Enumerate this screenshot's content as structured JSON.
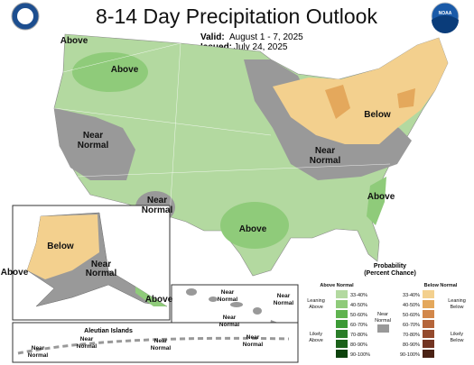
{
  "header": {
    "title": "8-14 Day Precipitation Outlook",
    "valid_label": "Valid:",
    "valid": "August 1 - 7, 2025",
    "issued_label": "Issued:",
    "issued": "July 24, 2025",
    "noaa_logo": "NOAA"
  },
  "map_labels": [
    {
      "lines": [
        "Above"
      ]
    },
    {
      "lines": [
        "Above"
      ]
    },
    {
      "lines": [
        "Below"
      ]
    },
    {
      "lines": [
        "Near",
        "Normal"
      ]
    },
    {
      "lines": [
        "Near",
        "Normal"
      ]
    },
    {
      "lines": [
        "Near",
        "Normal"
      ]
    },
    {
      "lines": [
        "Above"
      ]
    },
    {
      "lines": [
        "Above"
      ]
    }
  ],
  "alaska_labels": [
    {
      "lines": [
        "Below"
      ]
    },
    {
      "lines": [
        "Near",
        "Normal"
      ]
    },
    {
      "lines": [
        "Above"
      ]
    },
    {
      "lines": [
        "Above"
      ]
    }
  ],
  "hawaii_labels": [
    {
      "lines": [
        "Near",
        "Normal"
      ]
    },
    {
      "lines": [
        "Near",
        "Normal"
      ]
    },
    {
      "lines": [
        "Near",
        "Normal"
      ]
    },
    {
      "lines": [
        "Near",
        "Normal"
      ]
    }
  ],
  "aleutian": {
    "title": "Aleutian Islands",
    "labels": [
      {
        "lines": [
          "Near",
          "Normal"
        ]
      },
      {
        "lines": [
          "Near",
          "Normal"
        ]
      },
      {
        "lines": [
          "Near",
          "Normal"
        ]
      }
    ]
  },
  "legend": {
    "title": [
      "Probability",
      "(Percent Chance)"
    ],
    "above_header": "Above Normal",
    "below_header": "Below Normal",
    "ranges": [
      "33-40%",
      "40-50%",
      "50-60%",
      "60-70%",
      "70-80%",
      "80-90%",
      "90-100%"
    ],
    "above_colors": [
      "#b3d9a0",
      "#8fcb7a",
      "#5fb34f",
      "#3b9a35",
      "#2a7d28",
      "#1b6119",
      "#0d420c"
    ],
    "below_colors": [
      "#f3d08e",
      "#e4a85c",
      "#d2874a",
      "#b5653a",
      "#944a2d",
      "#733522",
      "#4a2214"
    ],
    "leaning_above": [
      "Leaning",
      "Above"
    ],
    "likely_above": [
      "Likely",
      "Above"
    ],
    "near_normal": [
      "Near",
      "Normal"
    ],
    "leaning_below": [
      "Leaning",
      "Below"
    ],
    "likely_below": [
      "Likely",
      "Below"
    ]
  }
}
